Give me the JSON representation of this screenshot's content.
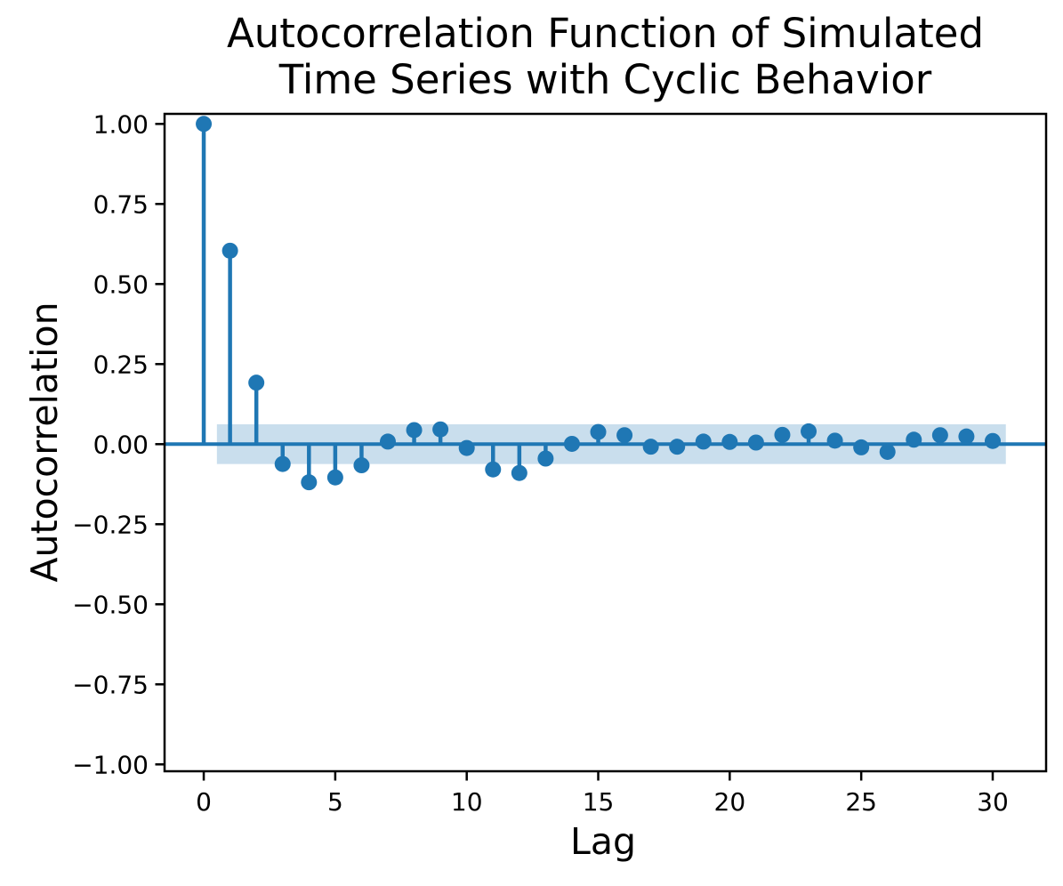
{
  "chart_data": {
    "type": "stem",
    "title": "Autocorrelation Function of Simulated Time Series with Cyclic Behavior",
    "title_lines": [
      "Autocorrelation Function of Simulated",
      "Time Series with Cyclic Behavior"
    ],
    "xlabel": "Lag",
    "ylabel": "Autocorrelation",
    "x": [
      0,
      1,
      2,
      3,
      4,
      5,
      6,
      7,
      8,
      9,
      10,
      11,
      12,
      13,
      14,
      15,
      16,
      17,
      18,
      19,
      20,
      21,
      22,
      23,
      24,
      25,
      26,
      27,
      28,
      29,
      30
    ],
    "values": [
      1.0,
      0.604,
      0.192,
      -0.062,
      -0.119,
      -0.104,
      -0.066,
      0.008,
      0.044,
      0.046,
      -0.012,
      -0.079,
      -0.09,
      -0.045,
      0.001,
      0.038,
      0.028,
      -0.008,
      -0.008,
      0.008,
      0.007,
      0.005,
      0.029,
      0.04,
      0.011,
      -0.01,
      -0.024,
      0.014,
      0.028,
      0.024,
      0.01
    ],
    "confidence_band": {
      "lower": -0.062,
      "upper": 0.062,
      "x_start": 0.5,
      "x_end": 30.5
    },
    "xlim": [
      -1.49,
      32.03
    ],
    "ylim": [
      -1.0214,
      1.0314
    ],
    "xticks": {
      "values": [
        0,
        5,
        10,
        15,
        20,
        25,
        30
      ],
      "labels": [
        "0",
        "5",
        "10",
        "15",
        "20",
        "25",
        "30"
      ]
    },
    "yticks": {
      "values": [
        1.0,
        0.75,
        0.5,
        0.25,
        0.0,
        -0.25,
        -0.5,
        -0.75,
        -1.0
      ],
      "labels": [
        "1.00",
        "0.75",
        "0.50",
        "0.25",
        "0.00",
        "−0.25",
        "−0.50",
        "−0.75",
        "−1.00"
      ]
    },
    "grid": false,
    "legend": null,
    "colors": {
      "stem": "#1f77b4",
      "marker": "#1f77b4",
      "baseline": "#1f77b4",
      "band": "#1f77b4",
      "band_opacity": 0.24,
      "axis": "#000000",
      "text": "#000000"
    }
  }
}
